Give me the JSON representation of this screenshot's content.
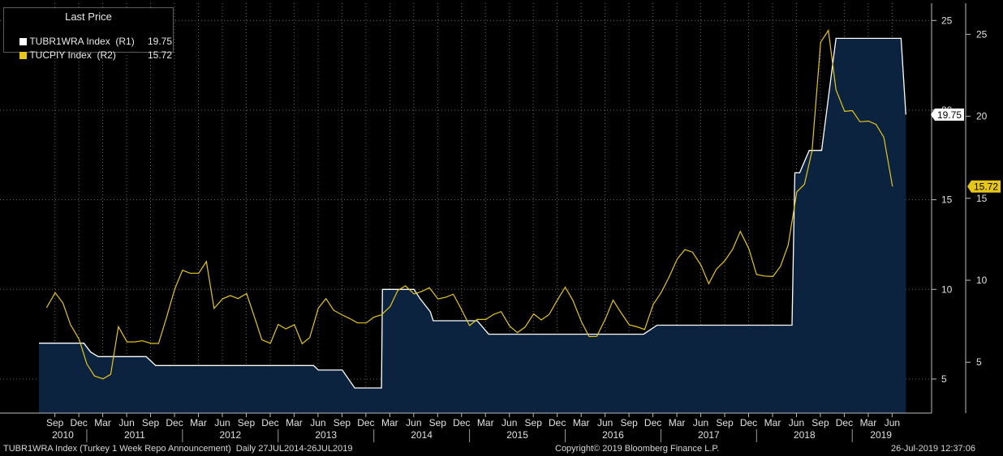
{
  "legend": {
    "title": "Last Price",
    "series": [
      {
        "label": "TUBR1WRA Index  (R1)",
        "value": "19.75",
        "color": "#ffffff"
      },
      {
        "label": "TUCPIY Index  (R2)",
        "value": "15.72",
        "color": "#e6c619"
      }
    ]
  },
  "footer": {
    "left": "TUBR1WRA Index (Turkey 1 Week Repo Announcement)  Daily 27JUL2014-26JUL2019",
    "center": "Copyright© 2019 Bloomberg Finance L.P.",
    "right": "26-Jul-2019 12:37:06"
  },
  "chart_data": {
    "type": "line",
    "background": "#000000",
    "grid": true,
    "legend_position": "top-left",
    "axes": {
      "r1": {
        "ticks": [
          "5",
          "10",
          "15",
          "20",
          "25"
        ],
        "tick_values": [
          5,
          10,
          15,
          20,
          25
        ],
        "range": [
          3.1,
          25.6
        ]
      },
      "r2": {
        "ticks": [
          "5",
          "10",
          "15",
          "20",
          "25"
        ],
        "tick_values": [
          5,
          10,
          15,
          20,
          25
        ],
        "range": [
          1.9,
          26.5
        ]
      }
    },
    "x_month_labels": [
      "Sep",
      "Dec",
      "Mar",
      "Jun",
      "Sep",
      "Dec",
      "Mar",
      "Jun",
      "Sep",
      "Dec",
      "Mar",
      "Jun",
      "Sep",
      "Dec",
      "Mar",
      "Jun",
      "Sep",
      "Dec",
      "Mar",
      "Jun",
      "Sep",
      "Dec",
      "Mar",
      "Jun",
      "Sep",
      "Dec",
      "Mar",
      "Jun",
      "Sep",
      "Dec",
      "Mar",
      "Jun",
      "Sep",
      "Dec",
      "Mar",
      "Jun"
    ],
    "x_year_labels": [
      "2010",
      "2011",
      "2012",
      "2013",
      "2014",
      "2015",
      "2016",
      "2017",
      "2018",
      "2019"
    ],
    "series": [
      {
        "name": "TUBR1WRA Index",
        "axis": "r1",
        "color": "#ffffff",
        "fill": "#0c2340",
        "step": true,
        "last_label": "19.75",
        "points": [
          [
            2010.5,
            7.0
          ],
          [
            2010.97,
            7.0
          ],
          [
            2011.04,
            6.5
          ],
          [
            2011.12,
            6.25
          ],
          [
            2011.62,
            6.25
          ],
          [
            2011.72,
            5.75
          ],
          [
            2013.37,
            5.75
          ],
          [
            2013.42,
            5.5
          ],
          [
            2013.67,
            5.5
          ],
          [
            2013.8,
            4.5
          ],
          [
            2014.08,
            4.5
          ],
          [
            2014.09,
            10.0
          ],
          [
            2014.42,
            10.0
          ],
          [
            2014.48,
            9.5
          ],
          [
            2014.59,
            8.75
          ],
          [
            2014.62,
            8.25
          ],
          [
            2015.08,
            8.25
          ],
          [
            2015.2,
            7.5
          ],
          [
            2016.82,
            7.5
          ],
          [
            2016.96,
            8.0
          ],
          [
            2018.37,
            8.0
          ],
          [
            2018.4,
            16.5
          ],
          [
            2018.45,
            16.5
          ],
          [
            2018.55,
            17.75
          ],
          [
            2018.68,
            17.75
          ],
          [
            2018.83,
            24.0
          ],
          [
            2019.51,
            24.0
          ],
          [
            2019.56,
            19.75
          ]
        ]
      },
      {
        "name": "TUCPIY Index",
        "axis": "r2",
        "color": "#e6c619",
        "last_label": "15.72",
        "points": [
          [
            2010.58,
            8.33
          ],
          [
            2010.67,
            9.24
          ],
          [
            2010.75,
            8.62
          ],
          [
            2010.83,
            7.29
          ],
          [
            2010.92,
            6.4
          ],
          [
            2011.0,
            4.9
          ],
          [
            2011.08,
            4.16
          ],
          [
            2011.17,
            3.99
          ],
          [
            2011.25,
            4.26
          ],
          [
            2011.33,
            7.17
          ],
          [
            2011.42,
            6.24
          ],
          [
            2011.5,
            6.24
          ],
          [
            2011.58,
            6.31
          ],
          [
            2011.67,
            6.15
          ],
          [
            2011.75,
            6.15
          ],
          [
            2011.83,
            7.66
          ],
          [
            2011.92,
            9.48
          ],
          [
            2012.0,
            10.61
          ],
          [
            2012.08,
            10.43
          ],
          [
            2012.17,
            10.43
          ],
          [
            2012.25,
            11.14
          ],
          [
            2012.33,
            8.28
          ],
          [
            2012.42,
            8.87
          ],
          [
            2012.5,
            9.07
          ],
          [
            2012.58,
            8.88
          ],
          [
            2012.67,
            9.19
          ],
          [
            2012.75,
            7.8
          ],
          [
            2012.83,
            6.37
          ],
          [
            2012.92,
            6.16
          ],
          [
            2013.0,
            7.31
          ],
          [
            2013.08,
            7.03
          ],
          [
            2013.17,
            7.29
          ],
          [
            2013.25,
            6.13
          ],
          [
            2013.33,
            6.51
          ],
          [
            2013.42,
            8.3
          ],
          [
            2013.5,
            8.88
          ],
          [
            2013.58,
            8.17
          ],
          [
            2013.67,
            7.88
          ],
          [
            2013.75,
            7.66
          ],
          [
            2013.83,
            7.4
          ],
          [
            2013.92,
            7.4
          ],
          [
            2014.0,
            7.75
          ],
          [
            2014.08,
            7.89
          ],
          [
            2014.17,
            8.39
          ],
          [
            2014.25,
            9.38
          ],
          [
            2014.33,
            9.66
          ],
          [
            2014.42,
            9.16
          ],
          [
            2014.5,
            9.32
          ],
          [
            2014.58,
            9.54
          ],
          [
            2014.67,
            8.86
          ],
          [
            2014.75,
            8.96
          ],
          [
            2014.83,
            9.15
          ],
          [
            2014.92,
            8.17
          ],
          [
            2015.0,
            7.24
          ],
          [
            2015.08,
            7.61
          ],
          [
            2015.17,
            7.61
          ],
          [
            2015.25,
            7.91
          ],
          [
            2015.33,
            8.09
          ],
          [
            2015.42,
            7.2
          ],
          [
            2015.5,
            6.81
          ],
          [
            2015.58,
            7.14
          ],
          [
            2015.67,
            7.95
          ],
          [
            2015.75,
            7.58
          ],
          [
            2015.83,
            7.9
          ],
          [
            2015.92,
            8.81
          ],
          [
            2016.0,
            9.58
          ],
          [
            2016.08,
            8.78
          ],
          [
            2016.17,
            7.46
          ],
          [
            2016.25,
            6.57
          ],
          [
            2016.33,
            6.58
          ],
          [
            2016.42,
            7.64
          ],
          [
            2016.5,
            8.79
          ],
          [
            2016.58,
            8.05
          ],
          [
            2016.67,
            7.28
          ],
          [
            2016.75,
            7.16
          ],
          [
            2016.83,
            7.0
          ],
          [
            2016.92,
            8.53
          ],
          [
            2017.0,
            9.22
          ],
          [
            2017.08,
            10.13
          ],
          [
            2017.17,
            11.29
          ],
          [
            2017.25,
            11.87
          ],
          [
            2017.33,
            11.72
          ],
          [
            2017.42,
            10.9
          ],
          [
            2017.5,
            9.79
          ],
          [
            2017.58,
            10.68
          ],
          [
            2017.67,
            11.2
          ],
          [
            2017.75,
            11.9
          ],
          [
            2017.83,
            12.98
          ],
          [
            2017.92,
            11.92
          ],
          [
            2018.0,
            10.35
          ],
          [
            2018.08,
            10.26
          ],
          [
            2018.17,
            10.23
          ],
          [
            2018.25,
            10.85
          ],
          [
            2018.33,
            12.15
          ],
          [
            2018.42,
            15.39
          ],
          [
            2018.5,
            15.85
          ],
          [
            2018.58,
            17.9
          ],
          [
            2018.67,
            24.52
          ],
          [
            2018.75,
            25.24
          ],
          [
            2018.83,
            21.62
          ],
          [
            2018.92,
            20.3
          ],
          [
            2019.0,
            20.35
          ],
          [
            2019.08,
            19.67
          ],
          [
            2019.17,
            19.71
          ],
          [
            2019.25,
            19.5
          ],
          [
            2019.33,
            18.71
          ],
          [
            2019.42,
            15.72
          ]
        ]
      }
    ]
  }
}
